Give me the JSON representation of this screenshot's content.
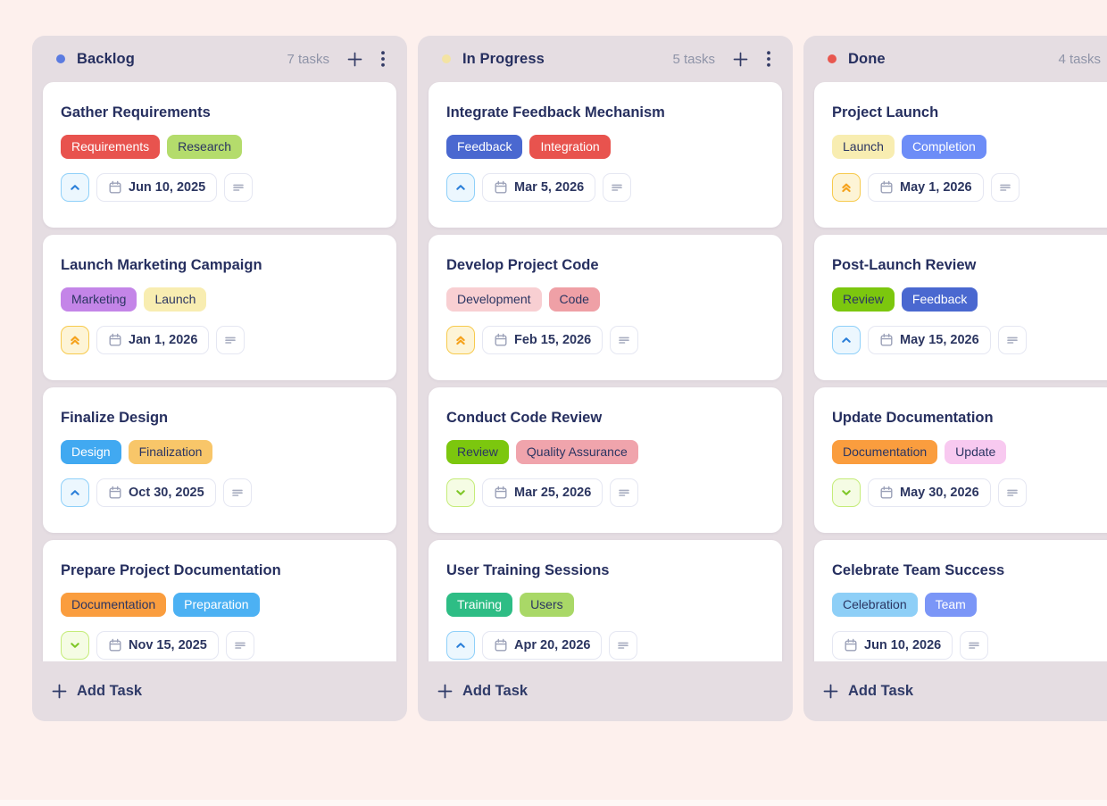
{
  "board": {
    "icons": {
      "column_add": "plus-icon",
      "column_menu": "kebab-menu-icon",
      "due_date": "calendar-icon",
      "description": "description-lines-icon",
      "priority_high": "double-chevron-up-icon",
      "priority_medium": "chevron-up-icon",
      "priority_low": "chevron-down-icon"
    },
    "priority_styles": {
      "high": {
        "bg": "#fdf4d6",
        "border": "#f7ca4d",
        "color": "#f5a21b"
      },
      "medium": {
        "bg": "#ecf7fe",
        "border": "#8fd0f9",
        "color": "#2b7fd9"
      },
      "low": {
        "bg": "#f5fce4",
        "border": "#c5ec79",
        "color": "#7fc727"
      }
    },
    "columns": [
      {
        "name": "Backlog",
        "count": "7 tasks",
        "dot_color": "#5b7be0",
        "add_task": "Add Task",
        "tasks": [
          {
            "title": "Gather Requirements",
            "tags": [
              {
                "label": "Requirements",
                "bg": "#e8534e",
                "fg": "#ffffff"
              },
              {
                "label": "Research",
                "bg": "#b4dc6c",
                "fg": "#2b3562"
              }
            ],
            "priority": "medium",
            "due": "Jun 10, 2025"
          },
          {
            "title": "Launch Marketing Campaign",
            "tags": [
              {
                "label": "Marketing",
                "bg": "#c485e8",
                "fg": "#2b3562"
              },
              {
                "label": "Launch",
                "bg": "#f8edb1",
                "fg": "#2b3562"
              }
            ],
            "priority": "high",
            "due": "Jan 1, 2026"
          },
          {
            "title": "Finalize Design",
            "tags": [
              {
                "label": "Design",
                "bg": "#41a9f1",
                "fg": "#ffffff"
              },
              {
                "label": "Finalization",
                "bg": "#f8c669",
                "fg": "#2b3562"
              }
            ],
            "priority": "medium",
            "due": "Oct 30, 2025"
          },
          {
            "title": "Prepare Project Documentation",
            "tags": [
              {
                "label": "Documentation",
                "bg": "#fa9d3e",
                "fg": "#2b3562"
              },
              {
                "label": "Preparation",
                "bg": "#4cb1f3",
                "fg": "#ffffff"
              }
            ],
            "priority": "low",
            "due": "Nov 15, 2025"
          }
        ]
      },
      {
        "name": "In Progress",
        "count": "5 tasks",
        "dot_color": "#f3e3a3",
        "add_task": "Add Task",
        "tasks": [
          {
            "title": "Integrate Feedback Mechanism",
            "tags": [
              {
                "label": "Feedback",
                "bg": "#4a68d0",
                "fg": "#ffffff"
              },
              {
                "label": "Integration",
                "bg": "#e8534e",
                "fg": "#ffffff"
              }
            ],
            "priority": "medium",
            "due": "Mar 5, 2026"
          },
          {
            "title": "Develop Project Code",
            "tags": [
              {
                "label": "Development",
                "bg": "#f8cfd2",
                "fg": "#2b3562"
              },
              {
                "label": "Code",
                "bg": "#efa0a6",
                "fg": "#2b3562"
              }
            ],
            "priority": "high",
            "due": "Feb 15, 2026"
          },
          {
            "title": "Conduct Code Review",
            "tags": [
              {
                "label": "Review",
                "bg": "#7cc70e",
                "fg": "#2b3562"
              },
              {
                "label": "Quality Assurance",
                "bg": "#f0a4ac",
                "fg": "#2b3562"
              }
            ],
            "priority": "low",
            "due": "Mar 25, 2026"
          },
          {
            "title": "User Training Sessions",
            "tags": [
              {
                "label": "Training",
                "bg": "#2ebd85",
                "fg": "#ffffff"
              },
              {
                "label": "Users",
                "bg": "#a9d867",
                "fg": "#2b3562"
              }
            ],
            "priority": "medium",
            "due": "Apr 20, 2026"
          }
        ]
      },
      {
        "name": "Done",
        "count": "4 tasks",
        "dot_color": "#e8574f",
        "add_task": "Add Task",
        "tasks": [
          {
            "title": "Project Launch",
            "tags": [
              {
                "label": "Launch",
                "bg": "#f8edb1",
                "fg": "#2b3562"
              },
              {
                "label": "Completion",
                "bg": "#6d8df7",
                "fg": "#ffffff"
              }
            ],
            "priority": "high",
            "due": "May 1, 2026"
          },
          {
            "title": "Post-Launch Review",
            "tags": [
              {
                "label": "Review",
                "bg": "#7cc70e",
                "fg": "#2b3562"
              },
              {
                "label": "Feedback",
                "bg": "#4a68d0",
                "fg": "#ffffff"
              }
            ],
            "priority": "medium",
            "due": "May 15, 2026"
          },
          {
            "title": "Update Documentation",
            "tags": [
              {
                "label": "Documentation",
                "bg": "#fa9d3e",
                "fg": "#2b3562"
              },
              {
                "label": "Update",
                "bg": "#f8c9f0",
                "fg": "#2b3562"
              }
            ],
            "priority": "low",
            "due": "May 30, 2026"
          },
          {
            "title": "Celebrate Team Success",
            "tags": [
              {
                "label": "Celebration",
                "bg": "#8ecff7",
                "fg": "#2b3562"
              },
              {
                "label": "Team",
                "bg": "#7b96f7",
                "fg": "#ffffff"
              }
            ],
            "priority": "none",
            "due": "Jun 10, 2026"
          }
        ]
      }
    ]
  }
}
